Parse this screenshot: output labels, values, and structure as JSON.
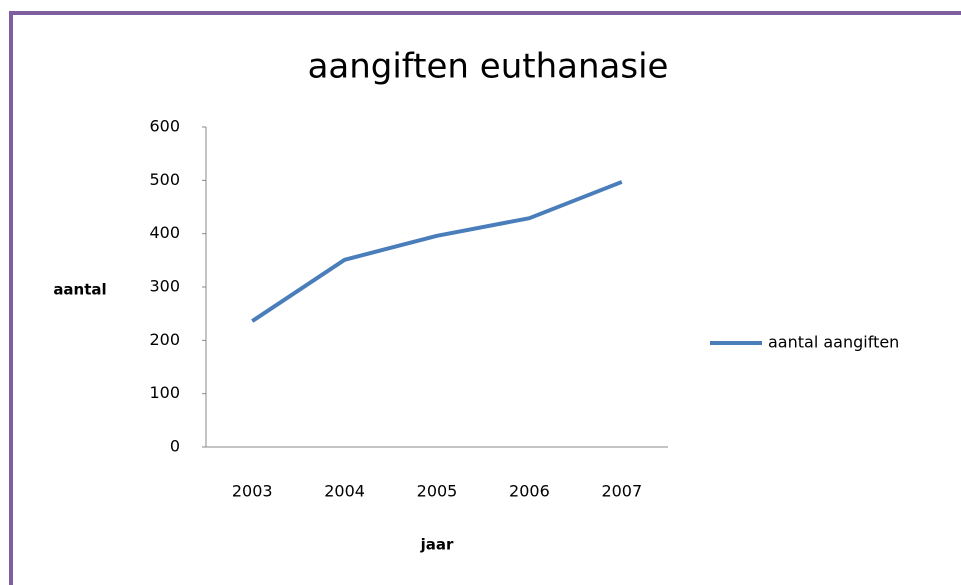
{
  "chart_data": {
    "type": "line",
    "title": "aangiften euthanasie",
    "x_label": "jaar",
    "y_label": "aantal",
    "categories": [
      "2003",
      "2004",
      "2005",
      "2006",
      "2007"
    ],
    "series": [
      {
        "name": "aantal aangiften",
        "color": "#4a7ebb",
        "values": [
          236,
          351,
          396,
          429,
          497
        ]
      }
    ],
    "ylim": [
      0,
      600
    ],
    "yticks": [
      0,
      100,
      200,
      300,
      400,
      500,
      600
    ],
    "grid": false,
    "legend": "right"
  }
}
